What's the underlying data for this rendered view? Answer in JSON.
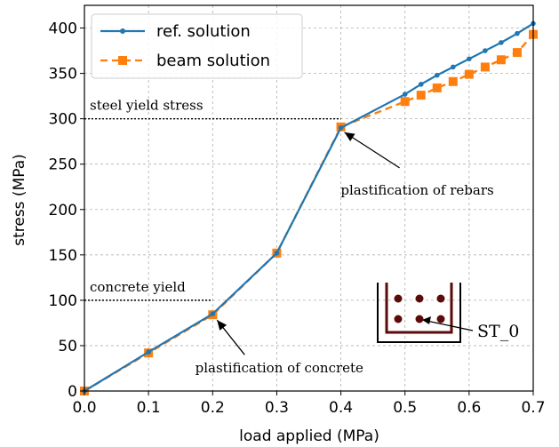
{
  "chart_data": {
    "type": "line",
    "title": "",
    "xlabel": "load applied (MPa)",
    "ylabel": "stress (MPa)",
    "xlim": [
      0.0,
      0.7
    ],
    "ylim": [
      0,
      425
    ],
    "x_ticks": [
      "0.0",
      "0.1",
      "0.2",
      "0.3",
      "0.4",
      "0.5",
      "0.6",
      "0.7"
    ],
    "y_ticks": [
      "0",
      "50",
      "100",
      "150",
      "200",
      "250",
      "300",
      "350",
      "400"
    ],
    "grid": true,
    "legend_position": "top-left",
    "series": [
      {
        "name": "ref. solution",
        "color": "#1f77b4",
        "style": "solid-with-dots",
        "x": [
          0.0,
          0.1,
          0.2,
          0.3,
          0.4,
          0.5,
          0.525,
          0.55,
          0.575,
          0.6,
          0.625,
          0.65,
          0.675,
          0.7
        ],
        "y": [
          0,
          43,
          85,
          152,
          290,
          327,
          338,
          348,
          357,
          366,
          375,
          384,
          394,
          405
        ]
      },
      {
        "name": "beam solution",
        "color": "#ff7f0e",
        "style": "dashed-with-squares",
        "x": [
          0.0,
          0.1,
          0.2,
          0.3,
          0.4,
          0.5,
          0.525,
          0.55,
          0.575,
          0.6,
          0.625,
          0.65,
          0.675,
          0.7
        ],
        "y": [
          0,
          42,
          84,
          152,
          291,
          319,
          326,
          334,
          341,
          349,
          357,
          365,
          373,
          393
        ]
      }
    ],
    "reference_lines": [
      {
        "label": "steel yield stress",
        "y": 300,
        "x_end": 0.4
      },
      {
        "label": "concrete yield",
        "y": 100,
        "x_end": 0.2
      }
    ],
    "annotations": [
      {
        "text": "plastification of rebars",
        "point": [
          0.4,
          290
        ]
      },
      {
        "text": "plastification of concrete",
        "point": [
          0.2,
          85
        ]
      }
    ],
    "inset": {
      "label": "ST_0",
      "color": "#5c0a0a"
    }
  }
}
